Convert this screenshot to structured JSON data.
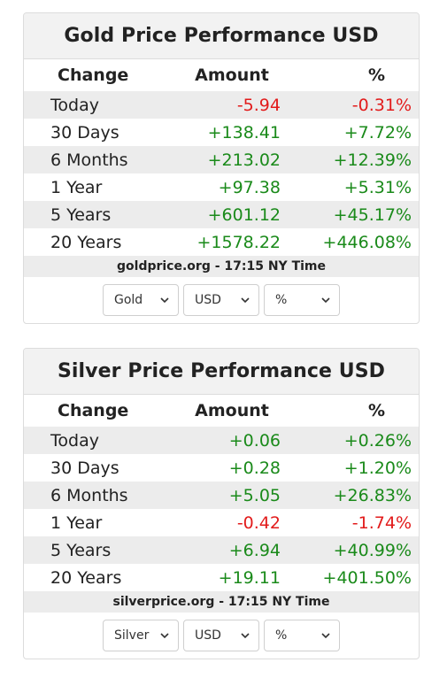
{
  "colors": {
    "positive": "#1a8a1a",
    "negative": "#e21b1b"
  },
  "gold": {
    "title": "Gold Price Performance USD",
    "headers": {
      "change": "Change",
      "amount": "Amount",
      "pct": "%"
    },
    "rows": [
      {
        "period": "Today",
        "amount": "-5.94",
        "pct": "-0.31%",
        "trend": "negative"
      },
      {
        "period": "30 Days",
        "amount": "+138.41",
        "pct": "+7.72%",
        "trend": "positive"
      },
      {
        "period": "6 Months",
        "amount": "+213.02",
        "pct": "+12.39%",
        "trend": "positive"
      },
      {
        "period": "1 Year",
        "amount": "+97.38",
        "pct": "+5.31%",
        "trend": "positive"
      },
      {
        "period": "5 Years",
        "amount": "+601.12",
        "pct": "+45.17%",
        "trend": "positive"
      },
      {
        "period": "20 Years",
        "amount": "+1578.22",
        "pct": "+446.08%",
        "trend": "positive"
      }
    ],
    "footer": "goldprice.org - 17:15 NY Time",
    "selects": {
      "metal": "Gold",
      "currency": "USD",
      "unit": "%"
    }
  },
  "silver": {
    "title": "Silver Price Performance USD",
    "headers": {
      "change": "Change",
      "amount": "Amount",
      "pct": "%"
    },
    "rows": [
      {
        "period": "Today",
        "amount": "+0.06",
        "pct": "+0.26%",
        "trend": "positive"
      },
      {
        "period": "30 Days",
        "amount": "+0.28",
        "pct": "+1.20%",
        "trend": "positive"
      },
      {
        "period": "6 Months",
        "amount": "+5.05",
        "pct": "+26.83%",
        "trend": "positive"
      },
      {
        "period": "1 Year",
        "amount": "-0.42",
        "pct": "-1.74%",
        "trend": "negative"
      },
      {
        "period": "5 Years",
        "amount": "+6.94",
        "pct": "+40.99%",
        "trend": "positive"
      },
      {
        "period": "20 Years",
        "amount": "+19.11",
        "pct": "+401.50%",
        "trend": "positive"
      }
    ],
    "footer": "silverprice.org - 17:15 NY Time",
    "selects": {
      "metal": "Silver",
      "currency": "USD",
      "unit": "%"
    }
  }
}
